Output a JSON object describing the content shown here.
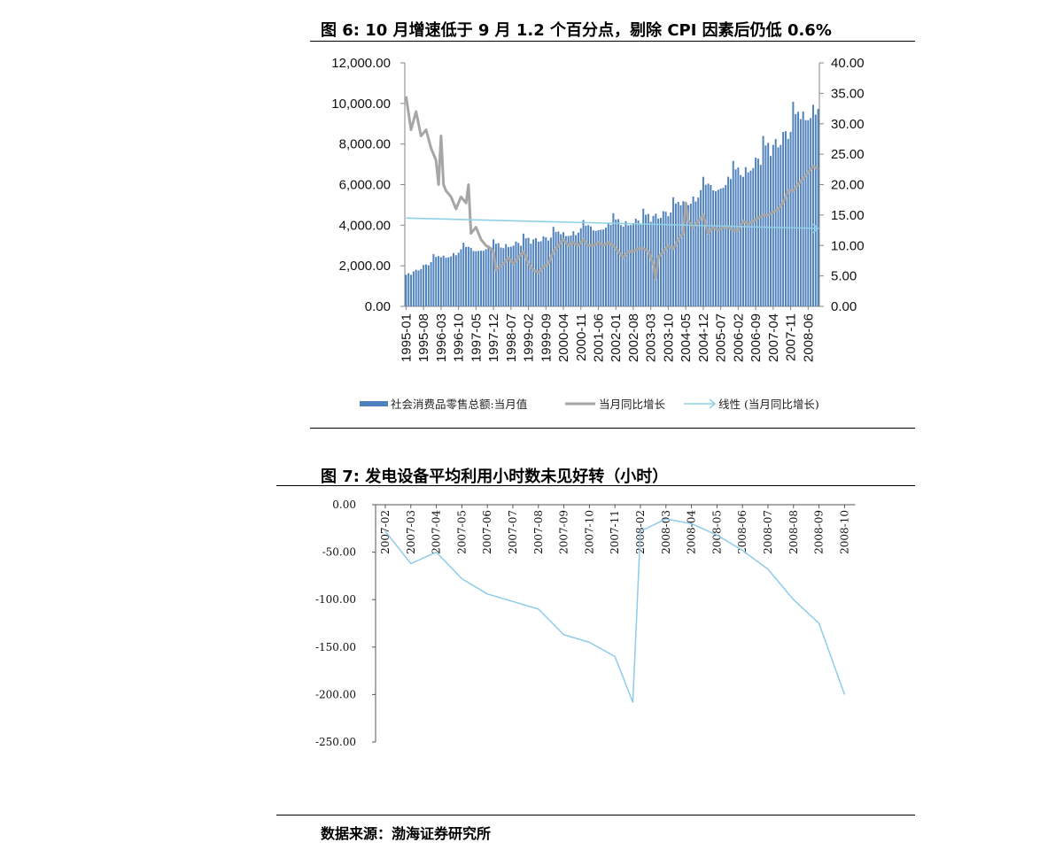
{
  "figure6": {
    "title": "图 6:  10 月增速低于 9 月 1.2 个百分点，剔除 CPI 因素后仍低 0.6%"
  },
  "figure7": {
    "title": "图 7:  发电设备平均利用小时数未见好转（小时）"
  },
  "source": "数据来源：渤海证券研究所",
  "colors": {
    "bar": "#4f81bd",
    "yoy_line": "#a6a6a6",
    "trend_line": "#8fd0e6",
    "hours_line": "#8fcbea"
  },
  "chart_data": [
    {
      "type": "bar+line",
      "title": "",
      "categories_tick_labels": [
        "1995-01",
        "1995-08",
        "1996-03",
        "1996-10",
        "1997-05",
        "1997-12",
        "1998-07",
        "1999-02",
        "1999-09",
        "2000-04",
        "2000-11",
        "2001-06",
        "2002-01",
        "2002-08",
        "2003-03",
        "2003-10",
        "2004-05",
        "2004-12",
        "2005-07",
        "2006-02",
        "2006-09",
        "2007-04",
        "2007-11",
        "2008-06"
      ],
      "x_range": [
        "1995-01",
        "2008-10"
      ],
      "left_axis": {
        "ylim": [
          0,
          12000
        ],
        "ticks": [
          "0.00",
          "2,000.00",
          "4,000.00",
          "6,000.00",
          "8,000.00",
          "10,000.00",
          "12,000.00"
        ]
      },
      "right_axis": {
        "ylim": [
          0,
          40
        ],
        "ticks": [
          "0.00",
          "5.00",
          "10.00",
          "15.00",
          "20.00",
          "25.00",
          "30.00",
          "35.00",
          "40.00"
        ]
      },
      "series": [
        {
          "name": "社会消费品零售总额:当月值",
          "kind": "bar",
          "axis": "left",
          "anchors": [
            [
              "1995-01",
              1500
            ],
            [
              "1995-12",
              2300
            ],
            [
              "1996-12",
              2800
            ],
            [
              "1997-12",
              2950
            ],
            [
              "1998-12",
              3200
            ],
            [
              "1999-12",
              3500
            ],
            [
              "2000-12",
              3800
            ],
            [
              "2001-12",
              4100
            ],
            [
              "2002-12",
              4300
            ],
            [
              "2003-12",
              4800
            ],
            [
              "2004-12",
              5700
            ],
            [
              "2005-12",
              6400
            ],
            [
              "2006-12",
              7500
            ],
            [
              "2007-12",
              9000
            ],
            [
              "2008-10",
              10100
            ]
          ]
        },
        {
          "name": "当月同比增长",
          "kind": "line",
          "axis": "right",
          "points": [
            [
              "1995-01",
              34.5
            ],
            [
              "1995-03",
              29
            ],
            [
              "1995-05",
              32
            ],
            [
              "1995-07",
              28
            ],
            [
              "1995-09",
              29
            ],
            [
              "1995-11",
              26
            ],
            [
              "1996-01",
              24
            ],
            [
              "1996-02",
              20
            ],
            [
              "1996-03",
              28
            ],
            [
              "1996-04",
              20
            ],
            [
              "1996-05",
              19
            ],
            [
              "1996-07",
              18
            ],
            [
              "1996-09",
              16
            ],
            [
              "1996-11",
              18
            ],
            [
              "1997-01",
              17
            ],
            [
              "1997-02",
              20
            ],
            [
              "1997-03",
              12
            ],
            [
              "1997-05",
              13
            ],
            [
              "1997-07",
              11
            ],
            [
              "1997-09",
              10
            ],
            [
              "1997-11",
              9.5
            ],
            [
              "1997-12",
              9
            ],
            [
              "1998-01",
              6
            ],
            [
              "1998-04",
              7
            ],
            [
              "1998-06",
              8
            ],
            [
              "1998-08",
              7
            ],
            [
              "1998-10",
              8
            ],
            [
              "1998-12",
              9
            ],
            [
              "1999-02",
              7
            ],
            [
              "1999-04",
              6
            ],
            [
              "1999-06",
              5.5
            ],
            [
              "1999-08",
              6.5
            ],
            [
              "1999-10",
              7
            ],
            [
              "1999-12",
              9
            ],
            [
              "2000-02",
              10
            ],
            [
              "2000-04",
              11
            ],
            [
              "2000-06",
              10
            ],
            [
              "2000-08",
              10.5
            ],
            [
              "2000-10",
              10
            ],
            [
              "2000-12",
              11
            ],
            [
              "2001-02",
              10
            ],
            [
              "2001-04",
              10
            ],
            [
              "2001-06",
              10.5
            ],
            [
              "2001-08",
              10
            ],
            [
              "2001-10",
              10.5
            ],
            [
              "2001-12",
              10
            ],
            [
              "2002-02",
              9
            ],
            [
              "2002-04",
              8
            ],
            [
              "2002-06",
              9
            ],
            [
              "2002-08",
              9
            ],
            [
              "2002-10",
              9.5
            ],
            [
              "2002-12",
              9.5
            ],
            [
              "2003-02",
              9
            ],
            [
              "2003-04",
              7
            ],
            [
              "2003-05",
              4.5
            ],
            [
              "2003-06",
              8
            ],
            [
              "2003-08",
              9
            ],
            [
              "2003-10",
              10
            ],
            [
              "2003-12",
              9.5
            ],
            [
              "2004-02",
              11
            ],
            [
              "2004-04",
              12
            ],
            [
              "2004-05",
              17
            ],
            [
              "2004-06",
              14
            ],
            [
              "2004-08",
              13
            ],
            [
              "2004-10",
              14
            ],
            [
              "2004-12",
              15
            ],
            [
              "2005-02",
              12
            ],
            [
              "2005-04",
              13
            ],
            [
              "2005-06",
              12.5
            ],
            [
              "2005-08",
              13
            ],
            [
              "2005-10",
              13
            ],
            [
              "2005-12",
              12.5
            ],
            [
              "2006-02",
              12.5
            ],
            [
              "2006-04",
              14
            ],
            [
              "2006-06",
              13.5
            ],
            [
              "2006-08",
              14
            ],
            [
              "2006-10",
              14.5
            ],
            [
              "2006-12",
              15
            ],
            [
              "2007-02",
              15
            ],
            [
              "2007-04",
              15.5
            ],
            [
              "2007-06",
              16
            ],
            [
              "2007-08",
              17
            ],
            [
              "2007-10",
              19
            ],
            [
              "2007-12",
              19
            ],
            [
              "2008-02",
              20
            ],
            [
              "2008-04",
              21
            ],
            [
              "2008-06",
              22
            ],
            [
              "2008-08",
              23
            ],
            [
              "2008-10",
              22.5
            ]
          ]
        },
        {
          "name": "线性 (当月同比增长)",
          "kind": "trendline",
          "axis": "right",
          "points": [
            [
              "1995-01",
              14.5
            ],
            [
              "2008-10",
              12.8
            ]
          ]
        }
      ],
      "legend_placement": "bottom"
    },
    {
      "type": "line",
      "title": "",
      "categories": [
        "2007-02",
        "2007-03",
        "2007-04",
        "2007-05",
        "2007-06",
        "2007-07",
        "2007-08",
        "2007-09",
        "2007-10",
        "2007-11",
        "2008-02",
        "2008-03",
        "2008-04",
        "2008-05",
        "2008-06",
        "2008-07",
        "2008-08",
        "2008-09",
        "2008-10"
      ],
      "ylim": [
        -250,
        0
      ],
      "y_ticks": [
        "0.00",
        "-50.00",
        "-100.00",
        "-150.00",
        "-200.00",
        "-250.00"
      ],
      "x_axis_position": "top",
      "points": [
        [
          "2007-02",
          -28
        ],
        [
          "2007-03",
          -62
        ],
        [
          "2007-04",
          -50
        ],
        [
          "2007-05",
          -78
        ],
        [
          "2007-06",
          -94
        ],
        [
          "2007-07",
          -102
        ],
        [
          "2007-08",
          -110
        ],
        [
          "2007-09",
          -137
        ],
        [
          "2007-10",
          -145
        ],
        [
          "2007-11",
          -160
        ],
        [
          "2007-11.7",
          -208
        ],
        [
          "2008-02",
          -28
        ],
        [
          "2008-03",
          -15
        ],
        [
          "2008-04",
          -20
        ],
        [
          "2008-05",
          -32
        ],
        [
          "2008-06",
          -48
        ],
        [
          "2008-07",
          -68
        ],
        [
          "2008-08",
          -100
        ],
        [
          "2008-09",
          -125
        ],
        [
          "2008-10",
          -200
        ]
      ],
      "grid": false
    }
  ]
}
